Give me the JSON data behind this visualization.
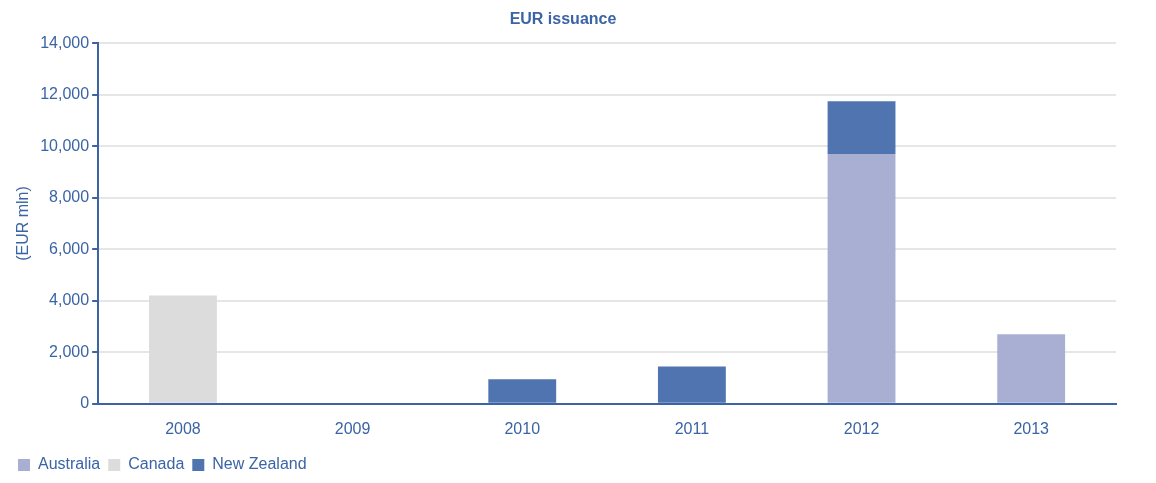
{
  "chart_data": {
    "type": "bar",
    "title": "EUR issuance",
    "ylabel": "(EUR mln)",
    "categories": [
      "2008",
      "2009",
      "2010",
      "2011",
      "2012",
      "2013"
    ],
    "stacked": true,
    "series": [
      {
        "name": "Australia",
        "color": "#a9afd3",
        "values": [
          null,
          null,
          null,
          null,
          9700,
          2700
        ]
      },
      {
        "name": "Canada",
        "color": "#dcdcdc",
        "values": [
          4200,
          null,
          null,
          null,
          null,
          null
        ]
      },
      {
        "name": "New Zealand",
        "color": "#4f74b0",
        "values": [
          null,
          null,
          950,
          1450,
          2050,
          null
        ]
      }
    ],
    "ylim": [
      0,
      14000
    ],
    "yticks": [
      {
        "value": 0,
        "label": "0"
      },
      {
        "value": 2000,
        "label": "2,000"
      },
      {
        "value": 4000,
        "label": "4,000"
      },
      {
        "value": 6000,
        "label": "6,000"
      },
      {
        "value": 8000,
        "label": "8,000"
      },
      {
        "value": 10000,
        "label": "10,000"
      },
      {
        "value": 12000,
        "label": "12,000"
      },
      {
        "value": 14000,
        "label": "14,000"
      }
    ],
    "grid": "y",
    "legend": "bottom left"
  }
}
